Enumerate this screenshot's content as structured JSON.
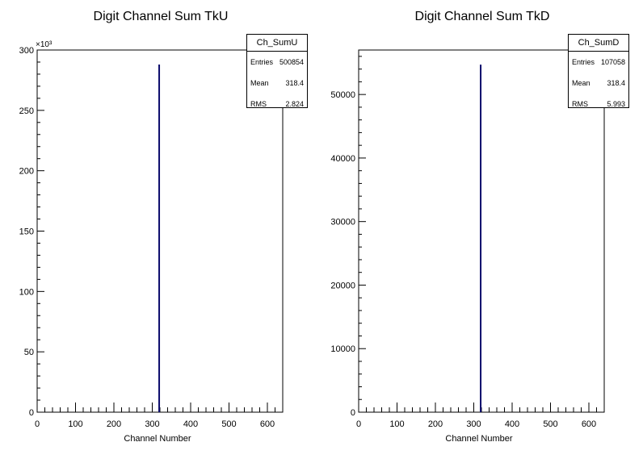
{
  "chart_data": [
    {
      "type": "bar",
      "title": "Digit Channel Sum TkU",
      "xlabel": "Channel Number",
      "ylabel": "",
      "xlim": [
        0,
        640
      ],
      "ylim": [
        0,
        300000
      ],
      "y_exponent_label": "×10³",
      "x_ticks": [
        0,
        100,
        200,
        300,
        400,
        500,
        600
      ],
      "x_tick_labels": [
        "0",
        "100",
        "200",
        "300",
        "400",
        "500",
        "600"
      ],
      "y_ticks": [
        0,
        50000,
        100000,
        150000,
        200000,
        250000,
        300000
      ],
      "y_tick_labels": [
        "0",
        "50",
        "100",
        "150",
        "200",
        "250",
        "300"
      ],
      "series": [
        {
          "values": [
            {
              "x": 318,
              "y": 288000
            }
          ]
        }
      ],
      "stats": {
        "name": "Ch_SumU",
        "rows": [
          {
            "label": "Entries",
            "value": "500854"
          },
          {
            "label": "Mean",
            "value": "318.4"
          },
          {
            "label": "RMS",
            "value": "2.824"
          }
        ]
      },
      "grid": false,
      "line_color": "#0a0a6b"
    },
    {
      "type": "bar",
      "title": "Digit Channel Sum TkD",
      "xlabel": "Channel Number",
      "ylabel": "",
      "xlim": [
        0,
        640
      ],
      "ylim": [
        0,
        57000
      ],
      "x_ticks": [
        0,
        100,
        200,
        300,
        400,
        500,
        600
      ],
      "x_tick_labels": [
        "0",
        "100",
        "200",
        "300",
        "400",
        "500",
        "600"
      ],
      "y_ticks": [
        0,
        10000,
        20000,
        30000,
        40000,
        50000
      ],
      "y_tick_labels": [
        "0",
        "10000",
        "20000",
        "30000",
        "40000",
        "50000"
      ],
      "series": [
        {
          "values": [
            {
              "x": 318,
              "y": 54700
            }
          ]
        }
      ],
      "stats": {
        "name": "Ch_SumD",
        "rows": [
          {
            "label": "Entries",
            "value": "107058"
          },
          {
            "label": "Mean",
            "value": "318.4"
          },
          {
            "label": "RMS",
            "value": "5.993"
          }
        ]
      },
      "grid": false,
      "line_color": "#0a0a6b"
    }
  ]
}
